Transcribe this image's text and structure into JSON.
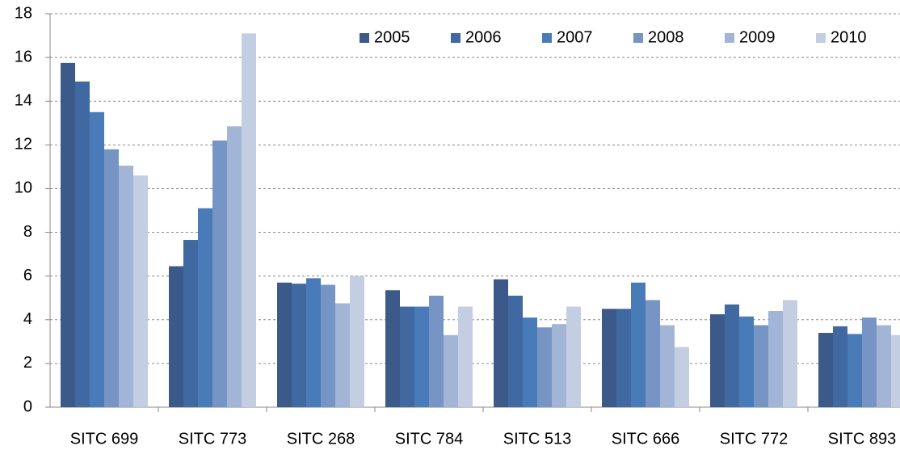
{
  "chart_data": {
    "type": "bar",
    "categories": [
      "SITC 699",
      "SITC 773",
      "SITC 268",
      "SITC 784",
      "SITC 513",
      "SITC 666",
      "SITC 772",
      "SITC 893"
    ],
    "series": [
      {
        "name": "2005",
        "color": "#3b5a8a",
        "values": [
          15.75,
          6.45,
          5.7,
          5.35,
          5.85,
          4.5,
          4.25,
          3.4
        ]
      },
      {
        "name": "2006",
        "color": "#3f69a0",
        "values": [
          14.9,
          7.65,
          5.65,
          4.6,
          5.1,
          4.5,
          4.7,
          3.7
        ]
      },
      {
        "name": "2007",
        "color": "#4a7bb9",
        "values": [
          13.5,
          9.1,
          5.9,
          4.6,
          4.1,
          5.7,
          4.15,
          3.35
        ]
      },
      {
        "name": "2008",
        "color": "#7795c4",
        "values": [
          11.8,
          12.2,
          5.6,
          5.1,
          3.65,
          4.9,
          3.75,
          4.1
        ]
      },
      {
        "name": "2009",
        "color": "#a3b5d6",
        "values": [
          11.05,
          12.85,
          4.75,
          3.3,
          3.8,
          3.75,
          4.4,
          3.75
        ]
      },
      {
        "name": "2010",
        "color": "#c4cee3",
        "values": [
          10.6,
          17.1,
          6.0,
          4.6,
          4.6,
          2.75,
          4.9,
          3.3
        ]
      }
    ],
    "ylim": [
      0,
      18
    ],
    "yticks": [
      0,
      2,
      4,
      6,
      8,
      10,
      12,
      14,
      16,
      18
    ],
    "grid": true,
    "legend": "top-right"
  }
}
